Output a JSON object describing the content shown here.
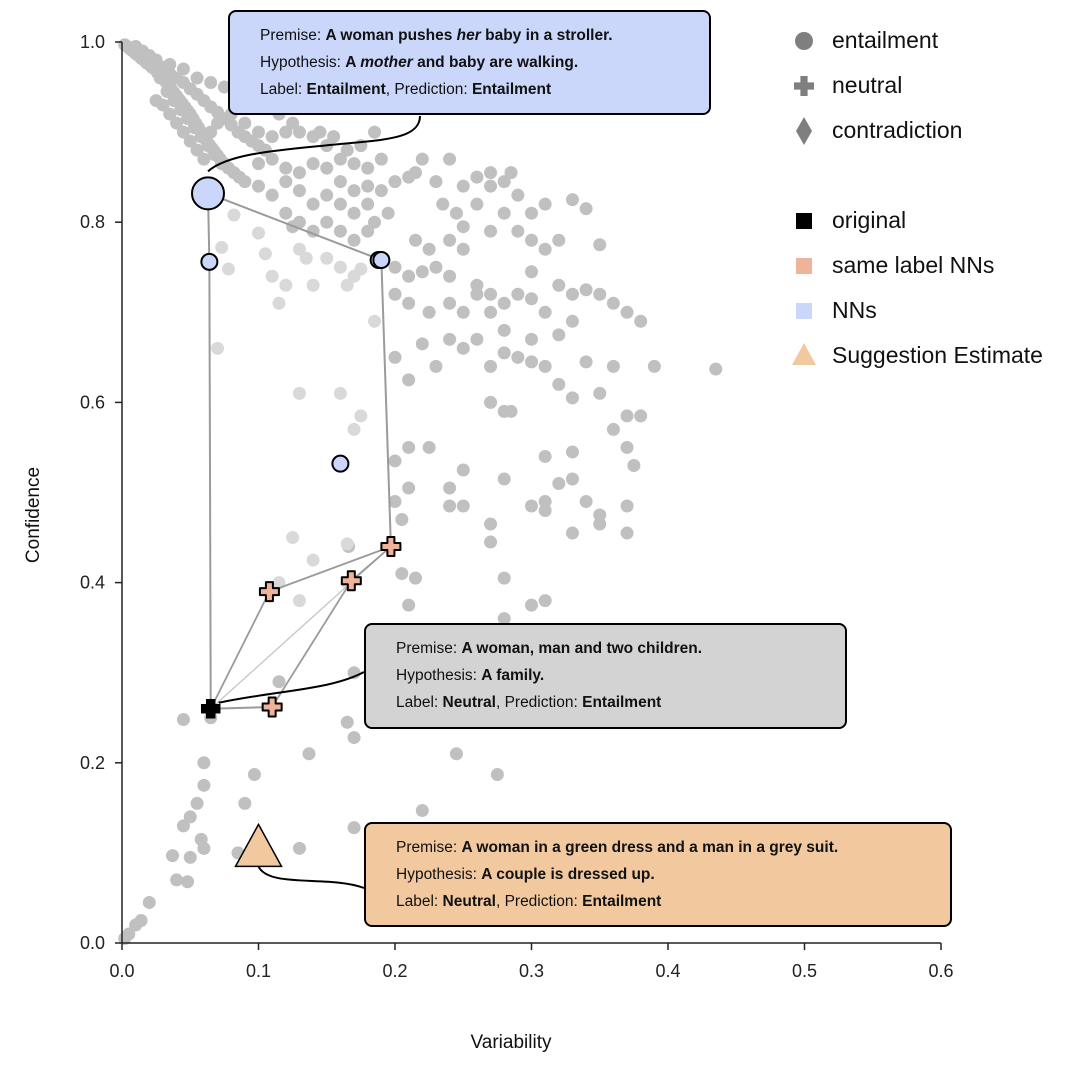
{
  "chart_data": {
    "type": "scatter",
    "xlabel": "Variability",
    "ylabel": "Confidence",
    "xlim": [
      0.0,
      0.6
    ],
    "ylim": [
      0.0,
      1.0
    ],
    "xticks": [
      "0.0",
      "0.1",
      "0.2",
      "0.3",
      "0.4",
      "0.5",
      "0.6"
    ],
    "yticks": [
      "0.0",
      "0.2",
      "0.4",
      "0.6",
      "0.8",
      "1.0"
    ],
    "grid": false,
    "legend_position": "top-right",
    "legend": [
      {
        "label": "entailment",
        "marker": "circle",
        "color": "#7f7f7f"
      },
      {
        "label": "neutral",
        "marker": "plus",
        "color": "#7f7f7f"
      },
      {
        "label": "contradiction",
        "marker": "diamond",
        "color": "#7f7f7f"
      },
      {
        "label": "original",
        "marker": "square",
        "color": "#000000"
      },
      {
        "label": "same label NNs",
        "marker": "square",
        "color": "#f0b39a"
      },
      {
        "label": "NNs",
        "marker": "square",
        "color": "#cad7fb"
      },
      {
        "label": "Suggestion Estimate",
        "marker": "triangle",
        "color": "#f2c99e"
      }
    ],
    "colors": {
      "background_points": "#c0c0c0",
      "faded_points": "#d9d9d9",
      "nn": "#cad7fb",
      "same_label_nn": "#f0b39a",
      "suggestion": "#f2c99e",
      "annotation_gray": "#d3d3d3",
      "edges": "#9a9a9a"
    },
    "background_points": [
      [
        0.002,
        0.997
      ],
      [
        0.004,
        0.995
      ],
      [
        0.006,
        0.992
      ],
      [
        0.008,
        0.99
      ],
      [
        0.01,
        0.987
      ],
      [
        0.012,
        0.985
      ],
      [
        0.014,
        0.982
      ],
      [
        0.016,
        0.98
      ],
      [
        0.018,
        0.977
      ],
      [
        0.02,
        0.975
      ],
      [
        0.022,
        0.972
      ],
      [
        0.024,
        0.97
      ],
      [
        0.026,
        0.966
      ],
      [
        0.028,
        0.963
      ],
      [
        0.03,
        0.96
      ],
      [
        0.032,
        0.956
      ],
      [
        0.034,
        0.952
      ],
      [
        0.036,
        0.948
      ],
      [
        0.038,
        0.944
      ],
      [
        0.04,
        0.94
      ],
      [
        0.042,
        0.936
      ],
      [
        0.044,
        0.932
      ],
      [
        0.046,
        0.928
      ],
      [
        0.048,
        0.924
      ],
      [
        0.05,
        0.92
      ],
      [
        0.052,
        0.915
      ],
      [
        0.054,
        0.91
      ],
      [
        0.056,
        0.905
      ],
      [
        0.058,
        0.9
      ],
      [
        0.06,
        0.895
      ],
      [
        0.062,
        0.89
      ],
      [
        0.064,
        0.886
      ],
      [
        0.066,
        0.882
      ],
      [
        0.068,
        0.878
      ],
      [
        0.07,
        0.874
      ],
      [
        0.072,
        0.87
      ],
      [
        0.075,
        0.865
      ],
      [
        0.078,
        0.86
      ],
      [
        0.082,
        0.855
      ],
      [
        0.086,
        0.85
      ],
      [
        0.01,
        0.995
      ],
      [
        0.015,
        0.99
      ],
      [
        0.02,
        0.985
      ],
      [
        0.025,
        0.978
      ],
      [
        0.03,
        0.972
      ],
      [
        0.035,
        0.965
      ],
      [
        0.04,
        0.96
      ],
      [
        0.045,
        0.955
      ],
      [
        0.05,
        0.948
      ],
      [
        0.055,
        0.942
      ],
      [
        0.06,
        0.935
      ],
      [
        0.065,
        0.928
      ],
      [
        0.07,
        0.922
      ],
      [
        0.075,
        0.915
      ],
      [
        0.08,
        0.908
      ],
      [
        0.085,
        0.9
      ],
      [
        0.09,
        0.895
      ],
      [
        0.095,
        0.89
      ],
      [
        0.1,
        0.885
      ],
      [
        0.105,
        0.88
      ],
      [
        0.025,
        0.935
      ],
      [
        0.03,
        0.93
      ],
      [
        0.035,
        0.92
      ],
      [
        0.04,
        0.91
      ],
      [
        0.045,
        0.9
      ],
      [
        0.05,
        0.89
      ],
      [
        0.055,
        0.88
      ],
      [
        0.06,
        0.87
      ],
      [
        0.065,
        0.9
      ],
      [
        0.07,
        0.91
      ],
      [
        0.028,
        0.96
      ],
      [
        0.033,
        0.945
      ],
      [
        0.038,
        0.935
      ],
      [
        0.043,
        0.925
      ],
      [
        0.048,
        0.915
      ],
      [
        0.053,
        0.905
      ],
      [
        0.058,
        0.895
      ],
      [
        0.063,
        0.885
      ],
      [
        0.068,
        0.875
      ],
      [
        0.073,
        0.865
      ],
      [
        0.08,
        0.92
      ],
      [
        0.09,
        0.91
      ],
      [
        0.1,
        0.9
      ],
      [
        0.11,
        0.895
      ],
      [
        0.12,
        0.9
      ],
      [
        0.125,
        0.91
      ],
      [
        0.13,
        0.9
      ],
      [
        0.14,
        0.895
      ],
      [
        0.145,
        0.9
      ],
      [
        0.15,
        0.885
      ],
      [
        0.11,
        0.93
      ],
      [
        0.115,
        0.92
      ],
      [
        0.095,
        0.93
      ],
      [
        0.085,
        0.94
      ],
      [
        0.075,
        0.95
      ],
      [
        0.065,
        0.955
      ],
      [
        0.055,
        0.96
      ],
      [
        0.045,
        0.97
      ],
      [
        0.035,
        0.975
      ],
      [
        0.025,
        0.98
      ],
      [
        0.1,
        0.865
      ],
      [
        0.11,
        0.87
      ],
      [
        0.12,
        0.86
      ],
      [
        0.13,
        0.855
      ],
      [
        0.14,
        0.865
      ],
      [
        0.15,
        0.86
      ],
      [
        0.16,
        0.87
      ],
      [
        0.17,
        0.865
      ],
      [
        0.18,
        0.86
      ],
      [
        0.19,
        0.87
      ],
      [
        0.155,
        0.895
      ],
      [
        0.165,
        0.88
      ],
      [
        0.175,
        0.885
      ],
      [
        0.185,
        0.9
      ],
      [
        0.16,
        0.845
      ],
      [
        0.17,
        0.835
      ],
      [
        0.18,
        0.84
      ],
      [
        0.19,
        0.835
      ],
      [
        0.2,
        0.845
      ],
      [
        0.21,
        0.85
      ],
      [
        0.09,
        0.845
      ],
      [
        0.1,
        0.84
      ],
      [
        0.11,
        0.83
      ],
      [
        0.12,
        0.845
      ],
      [
        0.13,
        0.835
      ],
      [
        0.14,
        0.82
      ],
      [
        0.15,
        0.83
      ],
      [
        0.16,
        0.82
      ],
      [
        0.17,
        0.81
      ],
      [
        0.18,
        0.82
      ],
      [
        0.12,
        0.81
      ],
      [
        0.125,
        0.795
      ],
      [
        0.13,
        0.8
      ],
      [
        0.14,
        0.79
      ],
      [
        0.15,
        0.8
      ],
      [
        0.16,
        0.79
      ],
      [
        0.17,
        0.78
      ],
      [
        0.18,
        0.79
      ],
      [
        0.185,
        0.8
      ],
      [
        0.195,
        0.81
      ],
      [
        0.215,
        0.855
      ],
      [
        0.22,
        0.87
      ],
      [
        0.23,
        0.845
      ],
      [
        0.24,
        0.87
      ],
      [
        0.25,
        0.84
      ],
      [
        0.26,
        0.85
      ],
      [
        0.27,
        0.855
      ],
      [
        0.28,
        0.845
      ],
      [
        0.285,
        0.855
      ],
      [
        0.27,
        0.84
      ],
      [
        0.235,
        0.82
      ],
      [
        0.245,
        0.81
      ],
      [
        0.26,
        0.82
      ],
      [
        0.28,
        0.81
      ],
      [
        0.3,
        0.81
      ],
      [
        0.31,
        0.82
      ],
      [
        0.33,
        0.825
      ],
      [
        0.34,
        0.815
      ],
      [
        0.29,
        0.83
      ],
      [
        0.25,
        0.795
      ],
      [
        0.215,
        0.78
      ],
      [
        0.225,
        0.77
      ],
      [
        0.24,
        0.78
      ],
      [
        0.25,
        0.77
      ],
      [
        0.27,
        0.79
      ],
      [
        0.29,
        0.79
      ],
      [
        0.3,
        0.78
      ],
      [
        0.31,
        0.77
      ],
      [
        0.32,
        0.78
      ],
      [
        0.35,
        0.775
      ],
      [
        0.2,
        0.75
      ],
      [
        0.21,
        0.74
      ],
      [
        0.22,
        0.745
      ],
      [
        0.23,
        0.75
      ],
      [
        0.24,
        0.74
      ],
      [
        0.26,
        0.73
      ],
      [
        0.27,
        0.72
      ],
      [
        0.28,
        0.71
      ],
      [
        0.3,
        0.745
      ],
      [
        0.32,
        0.73
      ],
      [
        0.2,
        0.72
      ],
      [
        0.21,
        0.71
      ],
      [
        0.225,
        0.7
      ],
      [
        0.24,
        0.71
      ],
      [
        0.25,
        0.7
      ],
      [
        0.26,
        0.72
      ],
      [
        0.27,
        0.7
      ],
      [
        0.29,
        0.72
      ],
      [
        0.3,
        0.715
      ],
      [
        0.31,
        0.7
      ],
      [
        0.33,
        0.72
      ],
      [
        0.34,
        0.725
      ],
      [
        0.35,
        0.72
      ],
      [
        0.36,
        0.71
      ],
      [
        0.37,
        0.7
      ],
      [
        0.38,
        0.69
      ],
      [
        0.33,
        0.69
      ],
      [
        0.32,
        0.675
      ],
      [
        0.3,
        0.67
      ],
      [
        0.28,
        0.68
      ],
      [
        0.26,
        0.67
      ],
      [
        0.25,
        0.66
      ],
      [
        0.24,
        0.67
      ],
      [
        0.22,
        0.665
      ],
      [
        0.2,
        0.65
      ],
      [
        0.21,
        0.625
      ],
      [
        0.23,
        0.64
      ],
      [
        0.27,
        0.64
      ],
      [
        0.28,
        0.655
      ],
      [
        0.29,
        0.65
      ],
      [
        0.3,
        0.645
      ],
      [
        0.31,
        0.64
      ],
      [
        0.32,
        0.62
      ],
      [
        0.34,
        0.645
      ],
      [
        0.36,
        0.64
      ],
      [
        0.39,
        0.64
      ],
      [
        0.435,
        0.637
      ],
      [
        0.27,
        0.6
      ],
      [
        0.28,
        0.59
      ],
      [
        0.285,
        0.59
      ],
      [
        0.33,
        0.605
      ],
      [
        0.35,
        0.61
      ],
      [
        0.37,
        0.585
      ],
      [
        0.38,
        0.585
      ],
      [
        0.36,
        0.57
      ],
      [
        0.37,
        0.55
      ],
      [
        0.375,
        0.53
      ],
      [
        0.33,
        0.545
      ],
      [
        0.31,
        0.54
      ],
      [
        0.32,
        0.51
      ],
      [
        0.33,
        0.515
      ],
      [
        0.34,
        0.49
      ],
      [
        0.31,
        0.49
      ],
      [
        0.28,
        0.515
      ],
      [
        0.25,
        0.525
      ],
      [
        0.24,
        0.505
      ],
      [
        0.225,
        0.55
      ],
      [
        0.21,
        0.55
      ],
      [
        0.2,
        0.535
      ],
      [
        0.2,
        0.49
      ],
      [
        0.24,
        0.485
      ],
      [
        0.25,
        0.485
      ],
      [
        0.27,
        0.465
      ],
      [
        0.3,
        0.485
      ],
      [
        0.31,
        0.48
      ],
      [
        0.35,
        0.475
      ],
      [
        0.35,
        0.465
      ],
      [
        0.37,
        0.485
      ],
      [
        0.37,
        0.455
      ],
      [
        0.33,
        0.455
      ],
      [
        0.21,
        0.505
      ],
      [
        0.205,
        0.47
      ],
      [
        0.205,
        0.41
      ],
      [
        0.215,
        0.405
      ],
      [
        0.21,
        0.375
      ],
      [
        0.28,
        0.405
      ],
      [
        0.3,
        0.375
      ],
      [
        0.31,
        0.38
      ],
      [
        0.28,
        0.36
      ],
      [
        0.27,
        0.445
      ],
      [
        0.166,
        0.44
      ],
      [
        0.17,
        0.3
      ],
      [
        0.165,
        0.245
      ],
      [
        0.17,
        0.228
      ],
      [
        0.137,
        0.21
      ],
      [
        0.245,
        0.21
      ],
      [
        0.275,
        0.187
      ],
      [
        0.22,
        0.147
      ],
      [
        0.097,
        0.187
      ],
      [
        0.065,
        0.25
      ],
      [
        0.06,
        0.2
      ],
      [
        0.06,
        0.175
      ],
      [
        0.055,
        0.155
      ],
      [
        0.09,
        0.155
      ],
      [
        0.05,
        0.14
      ],
      [
        0.045,
        0.13
      ],
      [
        0.058,
        0.115
      ],
      [
        0.06,
        0.105
      ],
      [
        0.037,
        0.097
      ],
      [
        0.05,
        0.095
      ],
      [
        0.13,
        0.105
      ],
      [
        0.085,
        0.1
      ],
      [
        0.04,
        0.07
      ],
      [
        0.048,
        0.068
      ],
      [
        0.02,
        0.045
      ],
      [
        0.014,
        0.025
      ],
      [
        0.01,
        0.02
      ],
      [
        0.005,
        0.01
      ],
      [
        0.002,
        0.005
      ],
      [
        0.17,
        0.128
      ],
      [
        0.115,
        0.29
      ],
      [
        0.045,
        0.248
      ]
    ],
    "faded_points": [
      [
        0.073,
        0.772
      ],
      [
        0.078,
        0.748
      ],
      [
        0.082,
        0.808
      ],
      [
        0.1,
        0.788
      ],
      [
        0.105,
        0.765
      ],
      [
        0.11,
        0.74
      ],
      [
        0.13,
        0.77
      ],
      [
        0.135,
        0.76
      ],
      [
        0.15,
        0.76
      ],
      [
        0.16,
        0.75
      ],
      [
        0.165,
        0.73
      ],
      [
        0.17,
        0.74
      ],
      [
        0.175,
        0.748
      ],
      [
        0.12,
        0.73
      ],
      [
        0.14,
        0.73
      ],
      [
        0.115,
        0.71
      ],
      [
        0.185,
        0.69
      ],
      [
        0.07,
        0.66
      ],
      [
        0.13,
        0.61
      ],
      [
        0.16,
        0.61
      ],
      [
        0.175,
        0.585
      ],
      [
        0.17,
        0.57
      ],
      [
        0.125,
        0.45
      ],
      [
        0.165,
        0.443
      ],
      [
        0.14,
        0.425
      ],
      [
        0.115,
        0.4
      ],
      [
        0.13,
        0.38
      ],
      [
        0.165,
        0.4
      ]
    ],
    "original": {
      "x": 0.065,
      "y": 0.26,
      "label": "neutral"
    },
    "same_label_nns": [
      {
        "x": 0.108,
        "y": 0.39
      },
      {
        "x": 0.168,
        "y": 0.402
      },
      {
        "x": 0.197,
        "y": 0.44
      },
      {
        "x": 0.11,
        "y": 0.262
      }
    ],
    "nns": [
      {
        "x": 0.063,
        "y": 0.832,
        "large": true
      },
      {
        "x": 0.064,
        "y": 0.756
      },
      {
        "x": 0.188,
        "y": 0.758
      },
      {
        "x": 0.19,
        "y": 0.758
      },
      {
        "x": 0.16,
        "y": 0.532
      }
    ],
    "suggestion_estimate": {
      "x": 0.1,
      "y": 0.105
    },
    "annotations": [
      {
        "id": "nn",
        "color": "#cad7fb",
        "premise_prefix": "Premise: ",
        "premise_a": "A woman pushes ",
        "premise_em": "her",
        "premise_b": " baby in a stroller.",
        "hypothesis_prefix": "Hypothesis: ",
        "hypothesis_a": "A ",
        "hypothesis_em": "mother",
        "hypothesis_b": " and baby are walking.",
        "label_prefix": "Label: ",
        "label": "Entailment",
        "prediction_prefix": ", Prediction: ",
        "prediction": "Entailment"
      },
      {
        "id": "original",
        "color": "#d3d3d3",
        "premise_prefix": "Premise: ",
        "premise": "A woman, man and two children.",
        "hypothesis_prefix": "Hypothesis: ",
        "hypothesis": "A family.",
        "label_prefix": "Label: ",
        "label": "Neutral",
        "prediction_prefix": ", Prediction: ",
        "prediction": "Entailment"
      },
      {
        "id": "suggestion",
        "color": "#f2c99e",
        "premise_prefix": "Premise: ",
        "premise": "A woman in a green dress and a man in a grey suit.",
        "hypothesis_prefix": "Hypothesis: ",
        "hypothesis": "A couple is dressed up.",
        "label_prefix": "Label: ",
        "label": "Neutral",
        "prediction_prefix": ", Prediction: ",
        "prediction": "Entailment"
      }
    ]
  }
}
